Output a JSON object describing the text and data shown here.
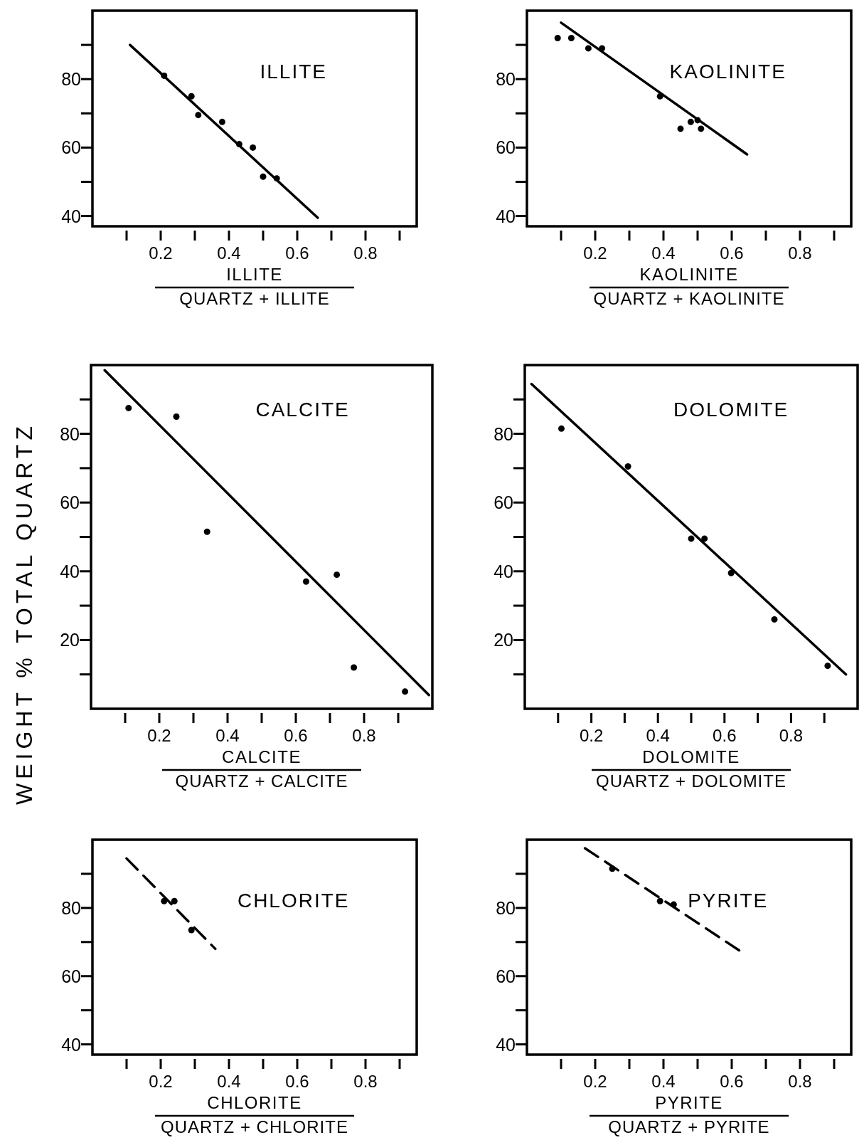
{
  "chart_data": [
    {
      "type": "scatter",
      "title": "ILLITE",
      "xlabel": "ILLITE\nQUARTZ + ILLITE",
      "xlim": [
        0,
        0.95
      ],
      "xticks": [
        {
          "value": 0.1,
          "label": null
        },
        0.2,
        {
          "value": 0.3,
          "label": null
        },
        0.4,
        {
          "value": 0.5,
          "label": null
        },
        0.6,
        {
          "value": 0.7,
          "label": null
        },
        0.8,
        {
          "value": 0.9,
          "label": null
        }
      ],
      "ylim": [
        37,
        100
      ],
      "yticks": [
        40,
        {
          "value": 50,
          "label": null
        },
        60,
        {
          "value": 70,
          "label": null
        },
        80,
        {
          "value": 90,
          "label": null
        }
      ],
      "series": [
        {
          "type": "scatter",
          "color": "#000000",
          "marker": "circle",
          "x": [
            0.21,
            0.29,
            0.31,
            0.38,
            0.43,
            0.47,
            0.5,
            0.54
          ],
          "values": [
            81,
            75,
            69.5,
            67.5,
            61,
            60,
            51.5,
            51
          ]
        },
        {
          "type": "line",
          "color": "#000000",
          "marker": "none",
          "line_style": "solid",
          "x": [
            0.11,
            0.66
          ],
          "values": [
            90,
            39.5
          ]
        }
      ]
    },
    {
      "type": "scatter",
      "title": "KAOLINITE",
      "xlabel": "KAOLINITE\nQUARTZ + KAOLINITE",
      "xlim": [
        0,
        0.95
      ],
      "xticks": [
        {
          "value": 0.1,
          "label": null
        },
        0.2,
        {
          "value": 0.3,
          "label": null
        },
        0.4,
        {
          "value": 0.5,
          "label": null
        },
        0.6,
        {
          "value": 0.7,
          "label": null
        },
        0.8,
        {
          "value": 0.9,
          "label": null
        }
      ],
      "ylim": [
        37,
        100
      ],
      "yticks": [
        40,
        {
          "value": 50,
          "label": null
        },
        60,
        {
          "value": 70,
          "label": null
        },
        80,
        {
          "value": 90,
          "label": null
        }
      ],
      "series": [
        {
          "type": "scatter",
          "color": "#000000",
          "marker": "circle",
          "x": [
            0.09,
            0.13,
            0.18,
            0.22,
            0.39,
            0.45,
            0.48,
            0.5,
            0.51
          ],
          "values": [
            92,
            92,
            89,
            89,
            75,
            65.5,
            67.5,
            68,
            65.5
          ]
        },
        {
          "type": "line",
          "color": "#000000",
          "marker": "none",
          "line_style": "solid",
          "x": [
            0.1,
            0.645
          ],
          "values": [
            96.5,
            58
          ]
        }
      ]
    },
    {
      "type": "scatter",
      "title": "CALCITE",
      "xlabel": "CALCITE\nQUARTZ + CALCITE",
      "ylabel": "WEIGHT % TOTAL QUARTZ",
      "xlim": [
        0,
        1
      ],
      "xticks": [
        {
          "value": 0.1,
          "label": null
        },
        0.2,
        {
          "value": 0.3,
          "label": null
        },
        0.4,
        {
          "value": 0.5,
          "label": null
        },
        0.6,
        {
          "value": 0.7,
          "label": null
        },
        0.8,
        {
          "value": 0.9,
          "label": null
        }
      ],
      "ylim": [
        0,
        100
      ],
      "yticks": [
        {
          "value": 10,
          "label": null
        },
        20,
        {
          "value": 30,
          "label": null
        },
        40,
        {
          "value": 50,
          "label": null
        },
        60,
        {
          "value": 70,
          "label": null
        },
        80,
        {
          "value": 90,
          "label": null
        }
      ],
      "series": [
        {
          "type": "scatter",
          "color": "#000000",
          "marker": "circle",
          "x": [
            0.11,
            0.25,
            0.34,
            0.63,
            0.72,
            0.77,
            0.92
          ],
          "values": [
            87.5,
            85,
            51.5,
            37,
            39,
            12,
            5
          ]
        },
        {
          "type": "line",
          "color": "#000000",
          "marker": "none",
          "line_style": "solid",
          "x": [
            0.04,
            0.99
          ],
          "values": [
            98.5,
            4
          ]
        }
      ]
    },
    {
      "type": "scatter",
      "title": "DOLOMITE",
      "xlabel": "DOLOMITE\nQUARTZ + DOLOMITE",
      "xlim": [
        0,
        1
      ],
      "xticks": [
        {
          "value": 0.1,
          "label": null
        },
        0.2,
        {
          "value": 0.3,
          "label": null
        },
        0.4,
        {
          "value": 0.5,
          "label": null
        },
        0.6,
        {
          "value": 0.7,
          "label": null
        },
        0.8,
        {
          "value": 0.9,
          "label": null
        }
      ],
      "ylim": [
        0,
        100
      ],
      "yticks": [
        {
          "value": 10,
          "label": null
        },
        20,
        {
          "value": 30,
          "label": null
        },
        40,
        {
          "value": 50,
          "label": null
        },
        60,
        {
          "value": 70,
          "label": null
        },
        80,
        {
          "value": 90,
          "label": null
        }
      ],
      "series": [
        {
          "type": "scatter",
          "color": "#000000",
          "marker": "circle",
          "x": [
            0.11,
            0.31,
            0.5,
            0.54,
            0.62,
            0.75,
            0.91
          ],
          "values": [
            81.5,
            70.5,
            49.5,
            49.5,
            39.5,
            26,
            12.5
          ]
        },
        {
          "type": "line",
          "color": "#000000",
          "marker": "none",
          "line_style": "solid",
          "x": [
            0.02,
            0.965
          ],
          "values": [
            94.5,
            10
          ]
        }
      ]
    },
    {
      "type": "scatter",
      "title": "CHLORITE",
      "xlabel": "CHLORITE\nQUARTZ + CHLORITE",
      "xlim": [
        0,
        0.95
      ],
      "xticks": [
        {
          "value": 0.1,
          "label": null
        },
        0.2,
        {
          "value": 0.3,
          "label": null
        },
        0.4,
        {
          "value": 0.5,
          "label": null
        },
        0.6,
        {
          "value": 0.7,
          "label": null
        },
        0.8,
        {
          "value": 0.9,
          "label": null
        }
      ],
      "ylim": [
        37,
        100
      ],
      "yticks": [
        40,
        {
          "value": 50,
          "label": null
        },
        60,
        {
          "value": 70,
          "label": null
        },
        80,
        {
          "value": 90,
          "label": null
        }
      ],
      "series": [
        {
          "type": "scatter",
          "color": "#000000",
          "marker": "circle",
          "x": [
            0.21,
            0.24,
            0.29
          ],
          "values": [
            82,
            82,
            73.5
          ]
        },
        {
          "type": "line",
          "color": "#000000",
          "marker": "none",
          "line_style": "dashed",
          "x": [
            0.1,
            0.36
          ],
          "values": [
            94.5,
            68
          ]
        }
      ]
    },
    {
      "type": "scatter",
      "title": "PYRITE",
      "xlabel": "PYRITE\nQUARTZ + PYRITE",
      "xlim": [
        0,
        0.95
      ],
      "xticks": [
        {
          "value": 0.1,
          "label": null
        },
        0.2,
        {
          "value": 0.3,
          "label": null
        },
        0.4,
        {
          "value": 0.5,
          "label": null
        },
        0.6,
        {
          "value": 0.7,
          "label": null
        },
        0.8,
        {
          "value": 0.9,
          "label": null
        }
      ],
      "ylim": [
        37,
        100
      ],
      "yticks": [
        40,
        {
          "value": 50,
          "label": null
        },
        60,
        {
          "value": 70,
          "label": null
        },
        80,
        {
          "value": 90,
          "label": null
        }
      ],
      "series": [
        {
          "type": "scatter",
          "color": "#000000",
          "marker": "circle",
          "x": [
            0.25,
            0.39,
            0.43
          ],
          "values": [
            91.5,
            82,
            81
          ]
        },
        {
          "type": "line",
          "color": "#000000",
          "marker": "none",
          "line_style": "dashed",
          "x": [
            0.17,
            0.63
          ],
          "values": [
            97.5,
            67
          ]
        }
      ]
    }
  ]
}
